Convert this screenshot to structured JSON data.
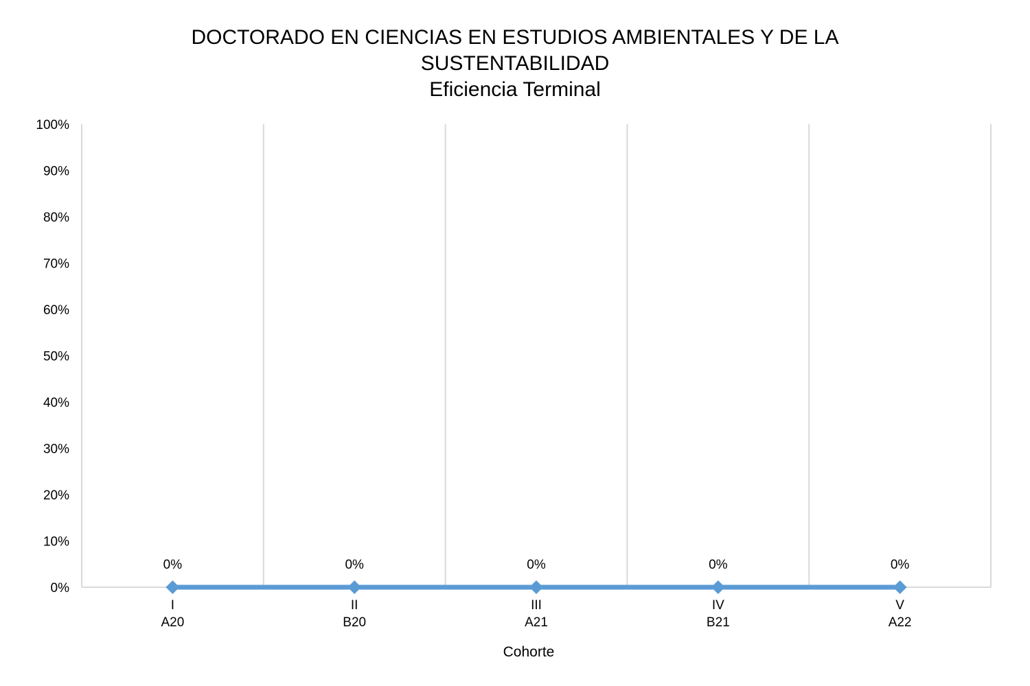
{
  "chart_data": {
    "type": "line",
    "title_lines": [
      "DOCTORADO EN CIENCIAS EN ESTUDIOS AMBIENTALES Y DE LA",
      "SUSTENTABILIDAD",
      "Eficiencia Terminal"
    ],
    "xlabel": "Cohorte",
    "ylabel": "",
    "categories": [
      {
        "roman": "I",
        "code": "A20"
      },
      {
        "roman": "II",
        "code": "B20"
      },
      {
        "roman": "III",
        "code": "A21"
      },
      {
        "roman": "IV",
        "code": "B21"
      },
      {
        "roman": "V",
        "code": "A22"
      }
    ],
    "series": [
      {
        "values": [
          0,
          0,
          0,
          0,
          0
        ],
        "data_labels": [
          "0%",
          "0%",
          "0%",
          "0%",
          "0%"
        ],
        "color": "#5B9BD5",
        "marker": "diamond"
      }
    ],
    "ylim": [
      0,
      100
    ],
    "y_ticks": [
      "0%",
      "10%",
      "20%",
      "30%",
      "40%",
      "50%",
      "60%",
      "70%",
      "80%",
      "90%",
      "100%"
    ],
    "grid": "vertical",
    "gridline_color": "#D9D9D9",
    "legend": "none"
  }
}
